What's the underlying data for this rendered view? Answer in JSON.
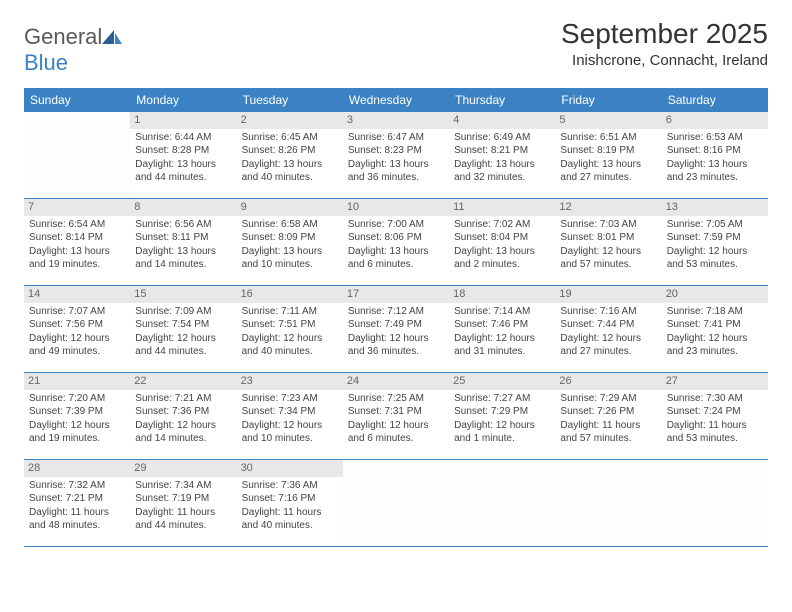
{
  "logo": {
    "general": "General",
    "blue": "Blue"
  },
  "title": "September 2025",
  "location": "Inishcrone, Connacht, Ireland",
  "colors": {
    "header_bg": "#3b82c4",
    "header_text": "#ffffff",
    "daynum_bg": "#e8e8e8",
    "row_border": "#3b82c4",
    "text": "#444444"
  },
  "weekdays": [
    "Sunday",
    "Monday",
    "Tuesday",
    "Wednesday",
    "Thursday",
    "Friday",
    "Saturday"
  ],
  "weeks": [
    [
      null,
      {
        "d": "1",
        "sr": "Sunrise: 6:44 AM",
        "ss": "Sunset: 8:28 PM",
        "dl1": "Daylight: 13 hours",
        "dl2": "and 44 minutes."
      },
      {
        "d": "2",
        "sr": "Sunrise: 6:45 AM",
        "ss": "Sunset: 8:26 PM",
        "dl1": "Daylight: 13 hours",
        "dl2": "and 40 minutes."
      },
      {
        "d": "3",
        "sr": "Sunrise: 6:47 AM",
        "ss": "Sunset: 8:23 PM",
        "dl1": "Daylight: 13 hours",
        "dl2": "and 36 minutes."
      },
      {
        "d": "4",
        "sr": "Sunrise: 6:49 AM",
        "ss": "Sunset: 8:21 PM",
        "dl1": "Daylight: 13 hours",
        "dl2": "and 32 minutes."
      },
      {
        "d": "5",
        "sr": "Sunrise: 6:51 AM",
        "ss": "Sunset: 8:19 PM",
        "dl1": "Daylight: 13 hours",
        "dl2": "and 27 minutes."
      },
      {
        "d": "6",
        "sr": "Sunrise: 6:53 AM",
        "ss": "Sunset: 8:16 PM",
        "dl1": "Daylight: 13 hours",
        "dl2": "and 23 minutes."
      }
    ],
    [
      {
        "d": "7",
        "sr": "Sunrise: 6:54 AM",
        "ss": "Sunset: 8:14 PM",
        "dl1": "Daylight: 13 hours",
        "dl2": "and 19 minutes."
      },
      {
        "d": "8",
        "sr": "Sunrise: 6:56 AM",
        "ss": "Sunset: 8:11 PM",
        "dl1": "Daylight: 13 hours",
        "dl2": "and 14 minutes."
      },
      {
        "d": "9",
        "sr": "Sunrise: 6:58 AM",
        "ss": "Sunset: 8:09 PM",
        "dl1": "Daylight: 13 hours",
        "dl2": "and 10 minutes."
      },
      {
        "d": "10",
        "sr": "Sunrise: 7:00 AM",
        "ss": "Sunset: 8:06 PM",
        "dl1": "Daylight: 13 hours",
        "dl2": "and 6 minutes."
      },
      {
        "d": "11",
        "sr": "Sunrise: 7:02 AM",
        "ss": "Sunset: 8:04 PM",
        "dl1": "Daylight: 13 hours",
        "dl2": "and 2 minutes."
      },
      {
        "d": "12",
        "sr": "Sunrise: 7:03 AM",
        "ss": "Sunset: 8:01 PM",
        "dl1": "Daylight: 12 hours",
        "dl2": "and 57 minutes."
      },
      {
        "d": "13",
        "sr": "Sunrise: 7:05 AM",
        "ss": "Sunset: 7:59 PM",
        "dl1": "Daylight: 12 hours",
        "dl2": "and 53 minutes."
      }
    ],
    [
      {
        "d": "14",
        "sr": "Sunrise: 7:07 AM",
        "ss": "Sunset: 7:56 PM",
        "dl1": "Daylight: 12 hours",
        "dl2": "and 49 minutes."
      },
      {
        "d": "15",
        "sr": "Sunrise: 7:09 AM",
        "ss": "Sunset: 7:54 PM",
        "dl1": "Daylight: 12 hours",
        "dl2": "and 44 minutes."
      },
      {
        "d": "16",
        "sr": "Sunrise: 7:11 AM",
        "ss": "Sunset: 7:51 PM",
        "dl1": "Daylight: 12 hours",
        "dl2": "and 40 minutes."
      },
      {
        "d": "17",
        "sr": "Sunrise: 7:12 AM",
        "ss": "Sunset: 7:49 PM",
        "dl1": "Daylight: 12 hours",
        "dl2": "and 36 minutes."
      },
      {
        "d": "18",
        "sr": "Sunrise: 7:14 AM",
        "ss": "Sunset: 7:46 PM",
        "dl1": "Daylight: 12 hours",
        "dl2": "and 31 minutes."
      },
      {
        "d": "19",
        "sr": "Sunrise: 7:16 AM",
        "ss": "Sunset: 7:44 PM",
        "dl1": "Daylight: 12 hours",
        "dl2": "and 27 minutes."
      },
      {
        "d": "20",
        "sr": "Sunrise: 7:18 AM",
        "ss": "Sunset: 7:41 PM",
        "dl1": "Daylight: 12 hours",
        "dl2": "and 23 minutes."
      }
    ],
    [
      {
        "d": "21",
        "sr": "Sunrise: 7:20 AM",
        "ss": "Sunset: 7:39 PM",
        "dl1": "Daylight: 12 hours",
        "dl2": "and 19 minutes."
      },
      {
        "d": "22",
        "sr": "Sunrise: 7:21 AM",
        "ss": "Sunset: 7:36 PM",
        "dl1": "Daylight: 12 hours",
        "dl2": "and 14 minutes."
      },
      {
        "d": "23",
        "sr": "Sunrise: 7:23 AM",
        "ss": "Sunset: 7:34 PM",
        "dl1": "Daylight: 12 hours",
        "dl2": "and 10 minutes."
      },
      {
        "d": "24",
        "sr": "Sunrise: 7:25 AM",
        "ss": "Sunset: 7:31 PM",
        "dl1": "Daylight: 12 hours",
        "dl2": "and 6 minutes."
      },
      {
        "d": "25",
        "sr": "Sunrise: 7:27 AM",
        "ss": "Sunset: 7:29 PM",
        "dl1": "Daylight: 12 hours",
        "dl2": "and 1 minute."
      },
      {
        "d": "26",
        "sr": "Sunrise: 7:29 AM",
        "ss": "Sunset: 7:26 PM",
        "dl1": "Daylight: 11 hours",
        "dl2": "and 57 minutes."
      },
      {
        "d": "27",
        "sr": "Sunrise: 7:30 AM",
        "ss": "Sunset: 7:24 PM",
        "dl1": "Daylight: 11 hours",
        "dl2": "and 53 minutes."
      }
    ],
    [
      {
        "d": "28",
        "sr": "Sunrise: 7:32 AM",
        "ss": "Sunset: 7:21 PM",
        "dl1": "Daylight: 11 hours",
        "dl2": "and 48 minutes."
      },
      {
        "d": "29",
        "sr": "Sunrise: 7:34 AM",
        "ss": "Sunset: 7:19 PM",
        "dl1": "Daylight: 11 hours",
        "dl2": "and 44 minutes."
      },
      {
        "d": "30",
        "sr": "Sunrise: 7:36 AM",
        "ss": "Sunset: 7:16 PM",
        "dl1": "Daylight: 11 hours",
        "dl2": "and 40 minutes."
      },
      null,
      null,
      null,
      null
    ]
  ]
}
